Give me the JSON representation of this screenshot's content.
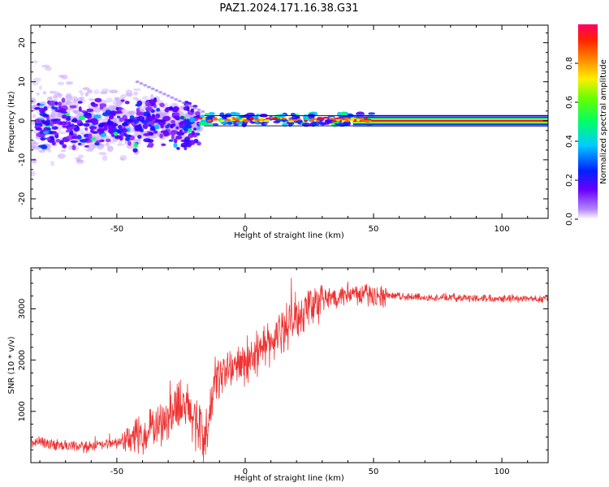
{
  "title": "PAZ1.2024.171.16.38.G31",
  "chart_data": [
    {
      "type": "heatmap",
      "title": "PAZ1.2024.171.16.38.G31",
      "xlabel": "Height of straight line (km)",
      "ylabel": "Frequency (Hz)",
      "xlim": [
        -83.5,
        118
      ],
      "ylim": [
        -25,
        24.5
      ],
      "x_ticks": [
        -50,
        0,
        50,
        100
      ],
      "x_tick_labels": [
        "-50",
        "0",
        "50",
        "100"
      ],
      "y_ticks": [
        -20,
        -10,
        0,
        10,
        20
      ],
      "y_tick_labels": [
        "-20",
        "-10",
        "0",
        "10",
        "20"
      ],
      "colorbar": {
        "label": "Normalized spectral amplitude",
        "range": [
          0,
          1
        ],
        "ticks": [
          0.0,
          0.2,
          0.4,
          0.6,
          0.8
        ],
        "tick_labels": [
          "0.0",
          "0.2",
          "0.4",
          "0.6",
          "0.8"
        ],
        "colormap": "gist_rainbow"
      },
      "features": [
        {
          "label": "scattered spectral power, heights -83 to -18 km",
          "x_range": [
            -83,
            -18
          ],
          "freq_range": [
            -20,
            20
          ],
          "amplitude": 0.1
        },
        {
          "label": "tone emerging near 0 Hz, heights -18 to 50 km",
          "x_range": [
            -18,
            50
          ],
          "freq_range": [
            -1,
            1.5
          ],
          "amplitude": 0.6
        },
        {
          "label": "stable tone at 0 Hz, heights 50 to 118 km",
          "x_range": [
            50,
            118
          ],
          "freq_range": [
            -0.5,
            0.5
          ],
          "amplitude": 1.0
        }
      ]
    },
    {
      "type": "line",
      "xlabel": "Height of straight line (km)",
      "ylabel": "SNR (10 * v/v)",
      "xlim": [
        -83.5,
        118
      ],
      "ylim": [
        0,
        3800
      ],
      "x_ticks": [
        -50,
        0,
        50,
        100
      ],
      "x_tick_labels": [
        "-50",
        "0",
        "50",
        "100"
      ],
      "y_ticks": [
        1000,
        2000,
        3000
      ],
      "y_tick_labels": [
        "1000",
        "2000",
        "3000"
      ],
      "color": "#ee3333",
      "x": [
        -83,
        -75,
        -65,
        -55,
        -48,
        -40,
        -32,
        -25,
        -20,
        -15,
        -12,
        -8,
        -4,
        0,
        4,
        8,
        12,
        16,
        20,
        25,
        30,
        35,
        40,
        45,
        50,
        55,
        60,
        70,
        80,
        90,
        100,
        110,
        118
      ],
      "y": [
        400,
        350,
        300,
        350,
        400,
        550,
        850,
        1100,
        900,
        450,
        1600,
        1800,
        1850,
        1950,
        2150,
        2250,
        2450,
        2650,
        2850,
        3050,
        3150,
        3250,
        3300,
        3300,
        3250,
        3250,
        3250,
        3220,
        3220,
        3210,
        3210,
        3200,
        3200
      ]
    }
  ]
}
